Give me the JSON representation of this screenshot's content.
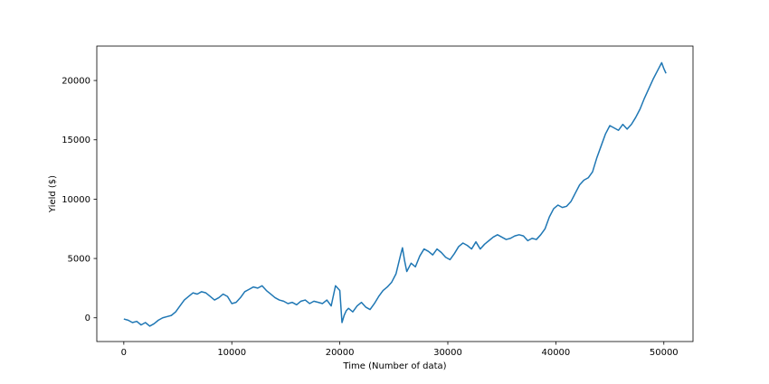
{
  "chart_data": {
    "type": "line",
    "title": "",
    "xlabel": "Time (Number of data)",
    "ylabel": "Yield ($)",
    "xlim": [
      -2500,
      52700
    ],
    "ylim": [
      -2000,
      22900
    ],
    "xticks": [
      0,
      10000,
      20000,
      30000,
      40000,
      50000
    ],
    "xtick_labels": [
      "0",
      "10000",
      "20000",
      "30000",
      "40000",
      "50000"
    ],
    "yticks": [
      0,
      5000,
      10000,
      15000,
      20000
    ],
    "ytick_labels": [
      "0",
      "5000",
      "10000",
      "15000",
      "20000"
    ],
    "grid": false,
    "line_color": "#1f77b4",
    "series": [
      {
        "x": [
          0,
          400,
          800,
          1200,
          1600,
          2000,
          2400,
          2800,
          3200,
          3600,
          4000,
          4400,
          4800,
          5200,
          5600,
          6000,
          6400,
          6800,
          7200,
          7600,
          8000,
          8400,
          8800,
          9200,
          9600,
          10000,
          10400,
          10800,
          11200,
          11600,
          12000,
          12400,
          12800,
          13200,
          13600,
          14000,
          14400,
          14800,
          15200,
          15600,
          16000,
          16400,
          16800,
          17200,
          17600,
          18000,
          18400,
          18800,
          19200,
          19600,
          20000,
          20200,
          20400,
          20600,
          20800,
          21200,
          21600,
          22000,
          22400,
          22800,
          23200,
          23600,
          24000,
          24400,
          24800,
          25200,
          25600,
          25800,
          26000,
          26200,
          26600,
          27000,
          27400,
          27800,
          28200,
          28600,
          29000,
          29400,
          29800,
          30200,
          30600,
          31000,
          31400,
          31800,
          32200,
          32600,
          33000,
          33400,
          33800,
          34200,
          34600,
          35000,
          35400,
          35800,
          36200,
          36600,
          37000,
          37400,
          37800,
          38200,
          38600,
          39000,
          39400,
          39800,
          40200,
          40600,
          41000,
          41400,
          41800,
          42200,
          42600,
          43000,
          43400,
          43800,
          44200,
          44600,
          45000,
          45400,
          45800,
          46200,
          46600,
          47000,
          47400,
          47800,
          48200,
          48600,
          49000,
          49400,
          49800,
          50000,
          50200
        ],
        "y": [
          -100,
          -200,
          -400,
          -300,
          -600,
          -400,
          -700,
          -500,
          -200,
          0,
          100,
          200,
          500,
          1000,
          1500,
          1800,
          2100,
          2000,
          2200,
          2100,
          1800,
          1500,
          1700,
          2000,
          1800,
          1200,
          1300,
          1700,
          2200,
          2400,
          2600,
          2500,
          2700,
          2300,
          2000,
          1700,
          1500,
          1400,
          1200,
          1300,
          1100,
          1400,
          1500,
          1200,
          1400,
          1300,
          1200,
          1500,
          1000,
          2700,
          2300,
          -400,
          200,
          600,
          800,
          500,
          1000,
          1300,
          900,
          700,
          1200,
          1800,
          2300,
          2600,
          3000,
          3700,
          5200,
          5900,
          4800,
          3900,
          4600,
          4300,
          5200,
          5800,
          5600,
          5300,
          5800,
          5500,
          5100,
          4900,
          5400,
          6000,
          6300,
          6100,
          5800,
          6400,
          5800,
          6200,
          6500,
          6800,
          7000,
          6800,
          6600,
          6700,
          6900,
          7000,
          6900,
          6500,
          6700,
          6600,
          7000,
          7500,
          8500,
          9200,
          9500,
          9300,
          9400,
          9800,
          10500,
          11200,
          11600,
          11800,
          12300,
          13500,
          14500,
          15500,
          16200,
          16000,
          15800,
          16300,
          15900,
          16300,
          16900,
          17600,
          18500,
          19300,
          20100,
          20800,
          21500,
          21000,
          20600
        ]
      }
    ]
  }
}
